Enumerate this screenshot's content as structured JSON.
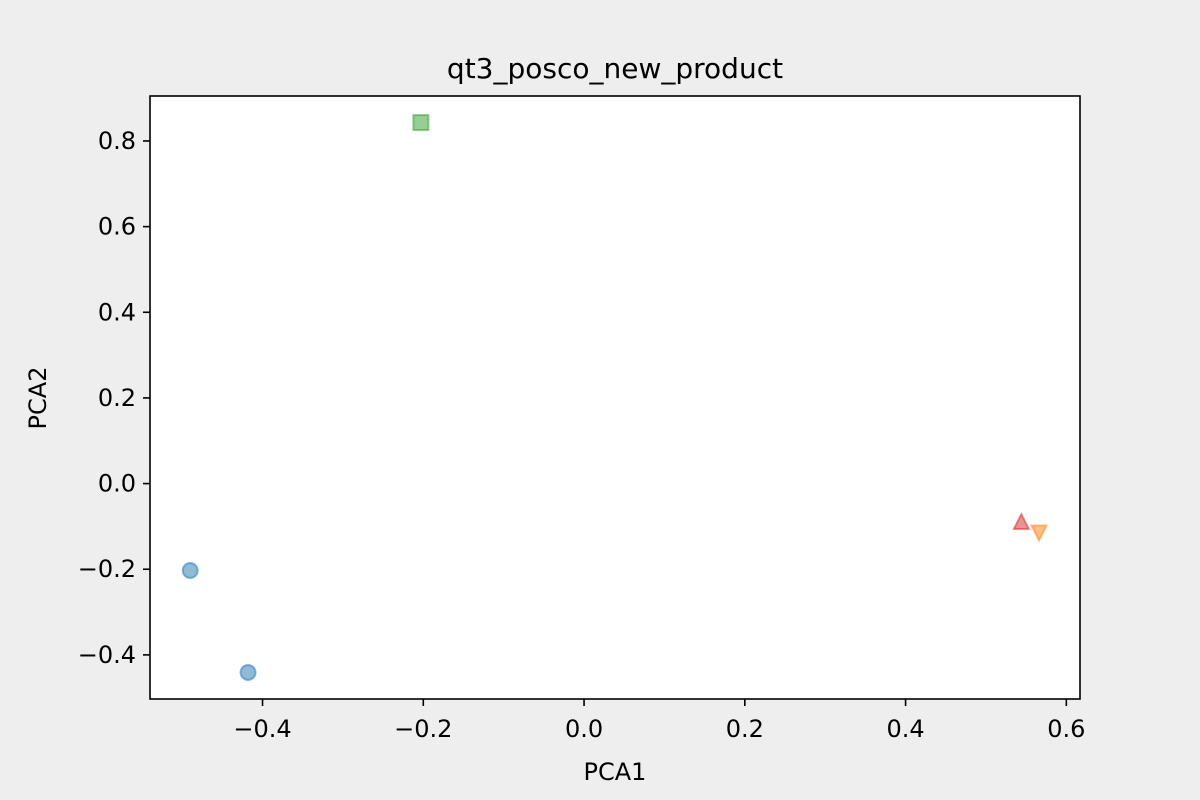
{
  "chart_data": {
    "type": "scatter",
    "title": "qt3_posco_new_product",
    "xlabel": "PCA1",
    "ylabel": "PCA2",
    "xlim": [
      -0.54,
      0.617
    ],
    "ylim": [
      -0.503,
      0.905
    ],
    "grid": false,
    "x_ticks": [
      -0.4,
      -0.2,
      0.0,
      0.2,
      0.4,
      0.6
    ],
    "x_tick_labels": [
      "−0.4",
      "−0.2",
      "0.0",
      "0.2",
      "0.4",
      "0.6"
    ],
    "y_ticks": [
      -0.4,
      -0.2,
      0.0,
      0.2,
      0.4,
      0.6,
      0.8
    ],
    "y_tick_labels": [
      "−0.4",
      "−0.2",
      "0.0",
      "0.2",
      "0.4",
      "0.6",
      "0.8"
    ],
    "series": [
      {
        "marker": "circle",
        "color": "#1f77b4",
        "points": [
          [
            -0.49,
            -0.203
          ],
          [
            -0.418,
            -0.441
          ]
        ]
      },
      {
        "marker": "square",
        "color": "#2ca02c",
        "points": [
          [
            -0.203,
            0.843
          ]
        ]
      },
      {
        "marker": "triangle-up",
        "color": "#d62728",
        "points": [
          [
            0.544,
            -0.091
          ]
        ]
      },
      {
        "marker": "triangle-down",
        "color": "#ff7f0e",
        "points": [
          [
            0.566,
            -0.113
          ]
        ]
      }
    ]
  }
}
